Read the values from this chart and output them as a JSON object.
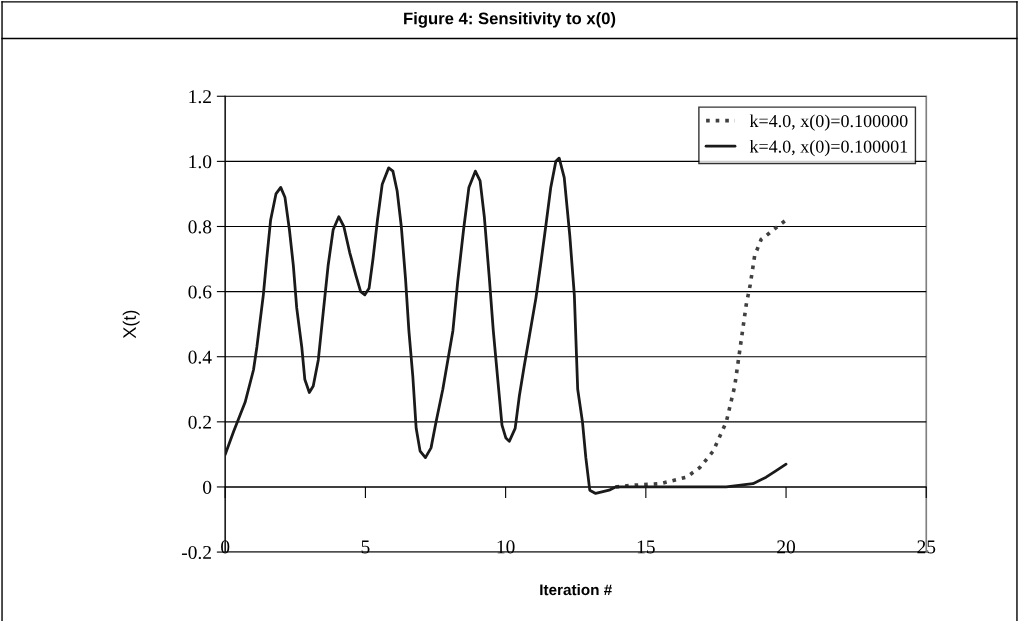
{
  "chart_data": {
    "type": "line",
    "title": "Figure 4: Sensitivity to x(0)",
    "xlabel": "Iteration #",
    "ylabel": "X(t)",
    "xlim": [
      0,
      25
    ],
    "xticks": [
      0,
      5,
      10,
      15,
      20,
      25
    ],
    "ylim": [
      -0.2,
      1.2
    ],
    "yticks": [
      {
        "value": -0.2,
        "label": "-0.2"
      },
      {
        "value": 0,
        "label": "0"
      },
      {
        "value": 0.2,
        "label": "0.2"
      },
      {
        "value": 0.4,
        "label": "0.4"
      },
      {
        "value": 0.6,
        "label": "0.6"
      },
      {
        "value": 0.8,
        "label": "0.8"
      },
      {
        "value": 1.0,
        "label": "1.0"
      },
      {
        "value": 1.2,
        "label": "1.2"
      }
    ],
    "grid": "y",
    "legend": "top right",
    "marker": "none",
    "series": [
      {
        "name": "k=4.0, x(0)=0.100000",
        "color": "#404040",
        "line_style": "dotted",
        "x": [
          13.92,
          14.5,
          15.51,
          16.45,
          16.93,
          17.4,
          17.87,
          18.17,
          18.4,
          18.58,
          18.72,
          18.88,
          19.11,
          19.41,
          19.7,
          20.0
        ],
        "values": [
          0.0,
          0.005,
          0.01,
          0.03,
          0.06,
          0.11,
          0.2,
          0.31,
          0.45,
          0.56,
          0.62,
          0.71,
          0.76,
          0.78,
          0.8,
          0.82
        ]
      },
      {
        "name": "k=4.0, x(0)=0.100001",
        "color": "#1a1a1a",
        "line_style": "solid",
        "x": [
          0,
          0.3,
          0.71,
          1.01,
          1.13,
          1.36,
          1.48,
          1.62,
          1.81,
          1.98,
          2.13,
          2.29,
          2.43,
          2.55,
          2.73,
          2.84,
          3.0,
          3.14,
          3.32,
          3.5,
          3.67,
          3.85,
          4.05,
          4.23,
          4.44,
          4.66,
          4.83,
          4.98,
          5.13,
          5.27,
          5.43,
          5.6,
          5.83,
          5.98,
          6.13,
          6.28,
          6.43,
          6.55,
          6.69,
          6.81,
          6.95,
          7.14,
          7.34,
          7.52,
          7.76,
          7.94,
          8.12,
          8.29,
          8.5,
          8.69,
          8.92,
          9.09,
          9.24,
          9.42,
          9.56,
          9.72,
          9.87,
          10.01,
          10.13,
          10.34,
          10.49,
          10.66,
          10.84,
          11.08,
          11.26,
          11.43,
          11.61,
          11.79,
          11.91,
          12.09,
          12.29,
          12.45,
          12.57,
          12.74,
          12.86,
          13.0,
          13.21,
          13.69,
          13.92,
          14.87,
          15.98,
          17.87,
          18.82,
          19.29,
          19.65,
          20.0
        ],
        "values": [
          0.1,
          0.17,
          0.26,
          0.36,
          0.43,
          0.59,
          0.7,
          0.82,
          0.9,
          0.92,
          0.89,
          0.79,
          0.68,
          0.55,
          0.43,
          0.33,
          0.29,
          0.31,
          0.39,
          0.54,
          0.68,
          0.79,
          0.83,
          0.8,
          0.72,
          0.65,
          0.6,
          0.59,
          0.61,
          0.7,
          0.82,
          0.93,
          0.98,
          0.97,
          0.91,
          0.8,
          0.64,
          0.48,
          0.34,
          0.18,
          0.11,
          0.09,
          0.12,
          0.2,
          0.3,
          0.39,
          0.48,
          0.63,
          0.79,
          0.92,
          0.97,
          0.94,
          0.83,
          0.64,
          0.48,
          0.33,
          0.19,
          0.15,
          0.14,
          0.18,
          0.28,
          0.37,
          0.46,
          0.58,
          0.69,
          0.8,
          0.92,
          1.0,
          1.01,
          0.95,
          0.77,
          0.59,
          0.3,
          0.2,
          0.09,
          -0.01,
          -0.02,
          -0.01,
          0.0,
          0.0,
          0.0,
          0.0,
          0.01,
          0.03,
          0.05,
          0.07
        ]
      }
    ]
  }
}
